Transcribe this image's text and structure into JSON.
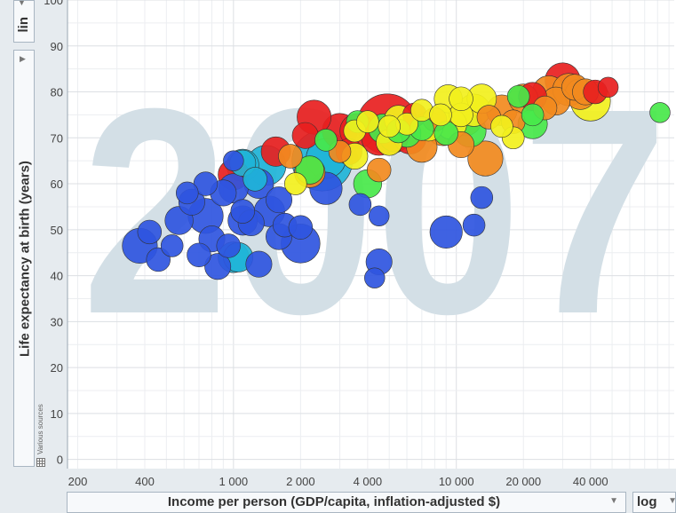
{
  "chart_data": {
    "type": "scatter",
    "title": "",
    "year": "2007",
    "xlabel": "Income per person (GDP/capita, inflation-adjusted $)",
    "ylabel": "Life expectancy at birth (years)",
    "x_scale": "log",
    "y_scale": "lin",
    "xlim": [
      180,
      95000
    ],
    "ylim": [
      -2,
      100
    ],
    "x_ticks": [
      {
        "value": 200,
        "label": "200"
      },
      {
        "value": 400,
        "label": "400"
      },
      {
        "value": 1000,
        "label": "1 000"
      },
      {
        "value": 2000,
        "label": "2 000"
      },
      {
        "value": 4000,
        "label": "4 000"
      },
      {
        "value": 10000,
        "label": "10 000"
      },
      {
        "value": 20000,
        "label": "20 000"
      },
      {
        "value": 40000,
        "label": "40 000"
      }
    ],
    "y_ticks": [
      0,
      10,
      20,
      30,
      40,
      50,
      60,
      70,
      80,
      90,
      100
    ],
    "grid": true,
    "source_note": "Various sources",
    "region_colors": {
      "africa": "#2f55e0",
      "south_asia": "#1fb4d8",
      "east_asia_pacific": "#e81f1f",
      "europe_central_asia": "#f28a1e",
      "middle_east_north_africa": "#48e84a",
      "america": "#f2f01d"
    },
    "points": [
      {
        "x": 2500,
        "y": 65,
        "size": 1.0,
        "region": "south_asia"
      },
      {
        "x": 4900,
        "y": 73,
        "size": 1.0,
        "region": "east_asia_pacific"
      },
      {
        "x": 2600,
        "y": 65.5,
        "size": 0.4,
        "region": "south_asia"
      },
      {
        "x": 1400,
        "y": 64,
        "size": 0.4,
        "region": "south_asia"
      },
      {
        "x": 1100,
        "y": 64,
        "size": 0.25,
        "region": "south_asia"
      },
      {
        "x": 750,
        "y": 53,
        "size": 0.3,
        "region": "africa"
      },
      {
        "x": 2000,
        "y": 47,
        "size": 0.38,
        "region": "africa"
      },
      {
        "x": 2600,
        "y": 59,
        "size": 0.25,
        "region": "africa"
      },
      {
        "x": 1300,
        "y": 60,
        "size": 0.2,
        "region": "africa"
      },
      {
        "x": 380,
        "y": 46.5,
        "size": 0.3,
        "region": "africa"
      },
      {
        "x": 1450,
        "y": 54,
        "size": 0.22,
        "region": "africa"
      },
      {
        "x": 1100,
        "y": 52,
        "size": 0.2,
        "region": "africa"
      },
      {
        "x": 1000,
        "y": 59,
        "size": 0.2,
        "region": "africa"
      },
      {
        "x": 9000,
        "y": 49.5,
        "size": 0.25,
        "region": "africa"
      },
      {
        "x": 1050,
        "y": 44,
        "size": 0.2,
        "region": "south_asia"
      },
      {
        "x": 1000,
        "y": 62,
        "size": 0.22,
        "region": "east_asia_pacific"
      },
      {
        "x": 2200,
        "y": 62.5,
        "size": 0.22,
        "region": "europe_central_asia"
      },
      {
        "x": 1550,
        "y": 67,
        "size": 0.2,
        "region": "east_asia_pacific"
      },
      {
        "x": 2300,
        "y": 74.5,
        "size": 0.28,
        "region": "east_asia_pacific"
      },
      {
        "x": 3000,
        "y": 71.5,
        "size": 0.3,
        "region": "east_asia_pacific"
      },
      {
        "x": 3600,
        "y": 71.5,
        "size": 0.3,
        "region": "east_asia_pacific"
      },
      {
        "x": 4500,
        "y": 70,
        "size": 0.3,
        "region": "east_asia_pacific"
      },
      {
        "x": 5300,
        "y": 70.5,
        "size": 0.25,
        "region": "east_asia_pacific"
      },
      {
        "x": 6200,
        "y": 70,
        "size": 0.25,
        "region": "east_asia_pacific"
      },
      {
        "x": 3300,
        "y": 67,
        "size": 0.15,
        "region": "east_asia_pacific"
      },
      {
        "x": 30000,
        "y": 82.5,
        "size": 0.3,
        "region": "east_asia_pacific"
      },
      {
        "x": 40000,
        "y": 78,
        "size": 0.4,
        "region": "america"
      },
      {
        "x": 7000,
        "y": 68,
        "size": 0.22,
        "region": "europe_central_asia"
      },
      {
        "x": 8700,
        "y": 72,
        "size": 0.28,
        "region": "europe_central_asia"
      },
      {
        "x": 11000,
        "y": 74,
        "size": 0.25,
        "region": "europe_central_asia"
      },
      {
        "x": 13500,
        "y": 65.5,
        "size": 0.3,
        "region": "europe_central_asia"
      },
      {
        "x": 16000,
        "y": 76,
        "size": 0.22,
        "region": "europe_central_asia"
      },
      {
        "x": 26000,
        "y": 80,
        "size": 0.25,
        "region": "europe_central_asia"
      },
      {
        "x": 32000,
        "y": 80.5,
        "size": 0.25,
        "region": "europe_central_asia"
      },
      {
        "x": 36000,
        "y": 79.5,
        "size": 0.22,
        "region": "europe_central_asia"
      },
      {
        "x": 20000,
        "y": 78.5,
        "size": 0.2,
        "region": "europe_central_asia"
      },
      {
        "x": 28000,
        "y": 78,
        "size": 0.18,
        "region": "europe_central_asia"
      },
      {
        "x": 10500,
        "y": 68.5,
        "size": 0.15,
        "region": "europe_central_asia"
      },
      {
        "x": 6000,
        "y": 71,
        "size": 0.18,
        "region": "middle_east_north_africa"
      },
      {
        "x": 11500,
        "y": 71.5,
        "size": 0.25,
        "region": "middle_east_north_africa"
      },
      {
        "x": 22000,
        "y": 73,
        "size": 0.2,
        "region": "middle_east_north_africa"
      },
      {
        "x": 4000,
        "y": 60,
        "size": 0.18,
        "region": "middle_east_north_africa"
      },
      {
        "x": 2200,
        "y": 63,
        "size": 0.18,
        "region": "middle_east_north_africa"
      },
      {
        "x": 4700,
        "y": 72,
        "size": 0.2,
        "region": "middle_east_north_africa"
      },
      {
        "x": 9500,
        "y": 73,
        "size": 0.22,
        "region": "america"
      },
      {
        "x": 12000,
        "y": 76,
        "size": 0.25,
        "region": "america"
      },
      {
        "x": 3500,
        "y": 66,
        "size": 0.15,
        "region": "america"
      },
      {
        "x": 7500,
        "y": 72.5,
        "size": 0.2,
        "region": "america"
      },
      {
        "x": 9200,
        "y": 78.5,
        "size": 0.18,
        "region": "america"
      },
      {
        "x": 13000,
        "y": 78.5,
        "size": 0.2,
        "region": "america"
      },
      {
        "x": 5500,
        "y": 74,
        "size": 0.18,
        "region": "america"
      },
      {
        "x": 5000,
        "y": 69,
        "size": 0.15,
        "region": "america"
      },
      {
        "x": 570,
        "y": 52,
        "size": 0.18,
        "region": "africa"
      },
      {
        "x": 900,
        "y": 58,
        "size": 0.15,
        "region": "africa"
      },
      {
        "x": 650,
        "y": 56,
        "size": 0.15,
        "region": "africa"
      },
      {
        "x": 800,
        "y": 48,
        "size": 0.15,
        "region": "africa"
      },
      {
        "x": 850,
        "y": 42,
        "size": 0.15,
        "region": "africa"
      },
      {
        "x": 1300,
        "y": 42.5,
        "size": 0.15,
        "region": "africa"
      },
      {
        "x": 460,
        "y": 43.5,
        "size": 0.12,
        "region": "africa"
      },
      {
        "x": 700,
        "y": 44.5,
        "size": 0.12,
        "region": "africa"
      },
      {
        "x": 950,
        "y": 46.5,
        "size": 0.12,
        "region": "africa"
      },
      {
        "x": 1200,
        "y": 51.5,
        "size": 0.15,
        "region": "africa"
      },
      {
        "x": 1600,
        "y": 56.5,
        "size": 0.15,
        "region": "africa"
      },
      {
        "x": 1700,
        "y": 51,
        "size": 0.12,
        "region": "africa"
      },
      {
        "x": 4500,
        "y": 43,
        "size": 0.15,
        "region": "africa"
      },
      {
        "x": 4300,
        "y": 39.5,
        "size": 0.08,
        "region": "africa"
      },
      {
        "x": 1600,
        "y": 48.5,
        "size": 0.15,
        "region": "africa"
      },
      {
        "x": 12000,
        "y": 51,
        "size": 0.1,
        "region": "africa"
      },
      {
        "x": 13000,
        "y": 57,
        "size": 0.1,
        "region": "africa"
      },
      {
        "x": 3700,
        "y": 55.5,
        "size": 0.1,
        "region": "africa"
      },
      {
        "x": 4500,
        "y": 53,
        "size": 0.08,
        "region": "africa"
      },
      {
        "x": 2000,
        "y": 50.5,
        "size": 0.12,
        "region": "africa"
      },
      {
        "x": 420,
        "y": 49.5,
        "size": 0.12,
        "region": "africa"
      },
      {
        "x": 530,
        "y": 46.5,
        "size": 0.1,
        "region": "africa"
      },
      {
        "x": 1100,
        "y": 54,
        "size": 0.12,
        "region": "africa"
      },
      {
        "x": 750,
        "y": 60,
        "size": 0.12,
        "region": "africa"
      },
      {
        "x": 620,
        "y": 58,
        "size": 0.1,
        "region": "africa"
      },
      {
        "x": 1000,
        "y": 44,
        "size": 0.22,
        "region": "south_asia"
      },
      {
        "x": 1100,
        "y": 64.5,
        "size": 0.15,
        "region": "south_asia"
      },
      {
        "x": 1250,
        "y": 61,
        "size": 0.12,
        "region": "south_asia"
      },
      {
        "x": 2100,
        "y": 70.5,
        "size": 0.15,
        "region": "east_asia_pacific"
      },
      {
        "x": 6500,
        "y": 75,
        "size": 0.12,
        "region": "east_asia_pacific"
      },
      {
        "x": 42000,
        "y": 80,
        "size": 0.12,
        "region": "east_asia_pacific"
      },
      {
        "x": 48000,
        "y": 81,
        "size": 0.08,
        "region": "east_asia_pacific"
      },
      {
        "x": 22000,
        "y": 79,
        "size": 0.18,
        "region": "east_asia_pacific"
      },
      {
        "x": 4500,
        "y": 63,
        "size": 0.12,
        "region": "europe_central_asia"
      },
      {
        "x": 1800,
        "y": 66,
        "size": 0.12,
        "region": "europe_central_asia"
      },
      {
        "x": 8000,
        "y": 74,
        "size": 0.12,
        "region": "europe_central_asia"
      },
      {
        "x": 14000,
        "y": 74.5,
        "size": 0.12,
        "region": "europe_central_asia"
      },
      {
        "x": 18000,
        "y": 73.5,
        "size": 0.12,
        "region": "europe_central_asia"
      },
      {
        "x": 34000,
        "y": 81,
        "size": 0.15,
        "region": "europe_central_asia"
      },
      {
        "x": 38000,
        "y": 80,
        "size": 0.15,
        "region": "europe_central_asia"
      },
      {
        "x": 25000,
        "y": 76.5,
        "size": 0.12,
        "region": "europe_central_asia"
      },
      {
        "x": 3000,
        "y": 67,
        "size": 0.1,
        "region": "europe_central_asia"
      },
      {
        "x": 9000,
        "y": 71,
        "size": 0.12,
        "region": "middle_east_north_africa"
      },
      {
        "x": 7000,
        "y": 72,
        "size": 0.12,
        "region": "middle_east_north_africa"
      },
      {
        "x": 5500,
        "y": 71.5,
        "size": 0.12,
        "region": "middle_east_north_africa"
      },
      {
        "x": 2600,
        "y": 69.5,
        "size": 0.1,
        "region": "middle_east_north_africa"
      },
      {
        "x": 3600,
        "y": 73.5,
        "size": 0.1,
        "region": "middle_east_north_africa"
      },
      {
        "x": 22000,
        "y": 75,
        "size": 0.1,
        "region": "middle_east_north_africa"
      },
      {
        "x": 19000,
        "y": 79,
        "size": 0.1,
        "region": "middle_east_north_africa"
      },
      {
        "x": 1900,
        "y": 60,
        "size": 0.1,
        "region": "america"
      },
      {
        "x": 3500,
        "y": 71.5,
        "size": 0.1,
        "region": "america"
      },
      {
        "x": 6000,
        "y": 73,
        "size": 0.1,
        "region": "america"
      },
      {
        "x": 7000,
        "y": 76,
        "size": 0.1,
        "region": "america"
      },
      {
        "x": 8500,
        "y": 75,
        "size": 0.1,
        "region": "america"
      },
      {
        "x": 10500,
        "y": 75,
        "size": 0.12,
        "region": "america"
      },
      {
        "x": 10500,
        "y": 78.5,
        "size": 0.12,
        "region": "america"
      },
      {
        "x": 18000,
        "y": 70,
        "size": 0.1,
        "region": "america"
      },
      {
        "x": 16000,
        "y": 72.5,
        "size": 0.1,
        "region": "america"
      },
      {
        "x": 5000,
        "y": 72.5,
        "size": 0.1,
        "region": "america"
      },
      {
        "x": 4000,
        "y": 73.5,
        "size": 0.1,
        "region": "america"
      },
      {
        "x": 82000,
        "y": 75.5,
        "size": 0.08,
        "region": "middle_east_north_africa"
      },
      {
        "x": 1000,
        "y": 65,
        "size": 0.08,
        "region": "africa"
      }
    ]
  },
  "controls": {
    "y_scale_label": "lin",
    "x_scale_label": "log"
  }
}
